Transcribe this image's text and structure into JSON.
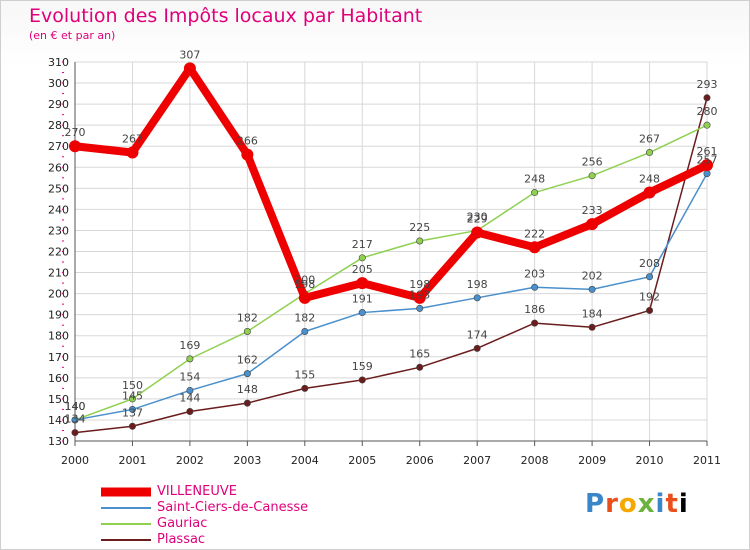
{
  "header": {
    "title": "Evolution des Impôts locaux par Habitant",
    "subtitle": "(en € et par an)"
  },
  "logo": {
    "text": "Proxiti"
  },
  "chart_data": {
    "type": "line",
    "title": "Evolution des Impôts locaux par Habitant",
    "subtitle": "(en € et par an)",
    "xlabel": "",
    "ylabel": "",
    "x": [
      "2000",
      "2001",
      "2002",
      "2003",
      "2004",
      "2005",
      "2006",
      "2007",
      "2008",
      "2009",
      "2010",
      "2011"
    ],
    "ylim": [
      130,
      310
    ],
    "yticks": [
      130,
      140,
      150,
      160,
      170,
      180,
      190,
      200,
      210,
      220,
      230,
      240,
      250,
      260,
      270,
      280,
      290,
      300,
      310
    ],
    "grid": true,
    "legend_position": "bottom-left",
    "series": [
      {
        "name": "VILLENEUVE",
        "color": "#ee0000",
        "values": [
          270,
          267,
          307,
          266,
          198,
          205,
          198,
          229,
          222,
          233,
          248,
          261
        ],
        "labels": [
          "270",
          "267",
          "307",
          "266",
          "198",
          "205",
          "198",
          "229",
          "222",
          "233",
          "248",
          "261"
        ]
      },
      {
        "name": "Saint-Ciers-de-Canesse",
        "color": "#4a90cc",
        "values": [
          140,
          145,
          154,
          162,
          182,
          191,
          193,
          198,
          203,
          202,
          208,
          257
        ],
        "labels": [
          "140",
          "145",
          "154",
          "162",
          "182",
          "191",
          "193",
          "198",
          "203",
          "202",
          "208",
          "257"
        ]
      },
      {
        "name": "Gauriac",
        "color": "#8fd050",
        "values": [
          140,
          150,
          169,
          182,
          200,
          217,
          225,
          230,
          248,
          256,
          267,
          280
        ],
        "labels": [
          "140",
          "150",
          "169",
          "182",
          "200",
          "217",
          "225",
          "230",
          "248",
          "256",
          "267",
          "280"
        ]
      },
      {
        "name": "Plassac",
        "color": "#6b1c1c",
        "values": [
          134,
          137,
          144,
          148,
          155,
          159,
          165,
          174,
          186,
          184,
          192,
          293
        ],
        "labels": [
          "134",
          "137",
          "144",
          "148",
          "155",
          "159",
          "165",
          "174",
          "186",
          "184",
          "192",
          "293"
        ]
      }
    ]
  }
}
